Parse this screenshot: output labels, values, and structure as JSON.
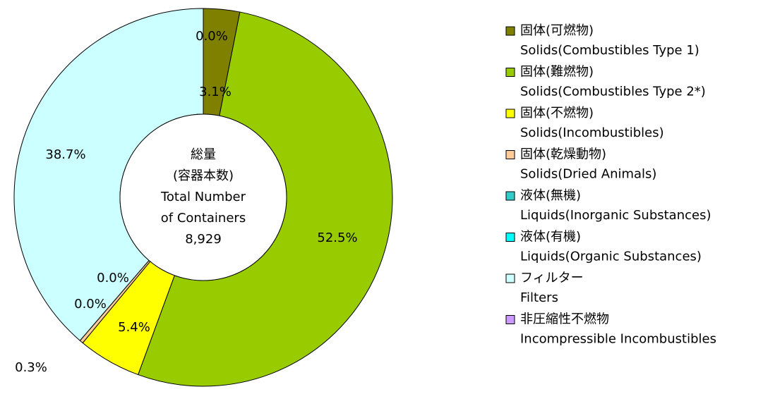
{
  "chart_data": {
    "type": "donut",
    "categories": [
      "固体(可燃物)",
      "固体(難燃物)",
      "固体(不燃物)",
      "固体(乾燥動物)",
      "液体(無機)",
      "液体(有機)",
      "フィルター",
      "非圧縮性不燃物"
    ],
    "categories_en": [
      "Solids(Combustibles Type 1)",
      "Solids(Combustibles Type 2*)",
      "Solids(Incombustibles)",
      "Solids(Dried Animals)",
      "Liquids(Inorganic Substances)",
      "Liquids(Organic Substances)",
      "Filters",
      "Incompressible Incombustibles"
    ],
    "values": [
      3.1,
      52.5,
      5.4,
      0.3,
      0.0,
      0.0,
      38.7,
      0.0
    ],
    "value_labels": [
      "3.1%",
      "52.5%",
      "5.4%",
      "0.3%",
      "0.0%",
      "0.0%",
      "38.7%",
      "0.0%"
    ],
    "colors": [
      "#808000",
      "#99cc00",
      "#ffff00",
      "#ffcc99",
      "#33cccc",
      "#00ffff",
      "#ccffff",
      "#cc99ff"
    ],
    "center_text": [
      "総量",
      "(容器本数)",
      "Total Number",
      "of Containers",
      "8,929"
    ]
  }
}
